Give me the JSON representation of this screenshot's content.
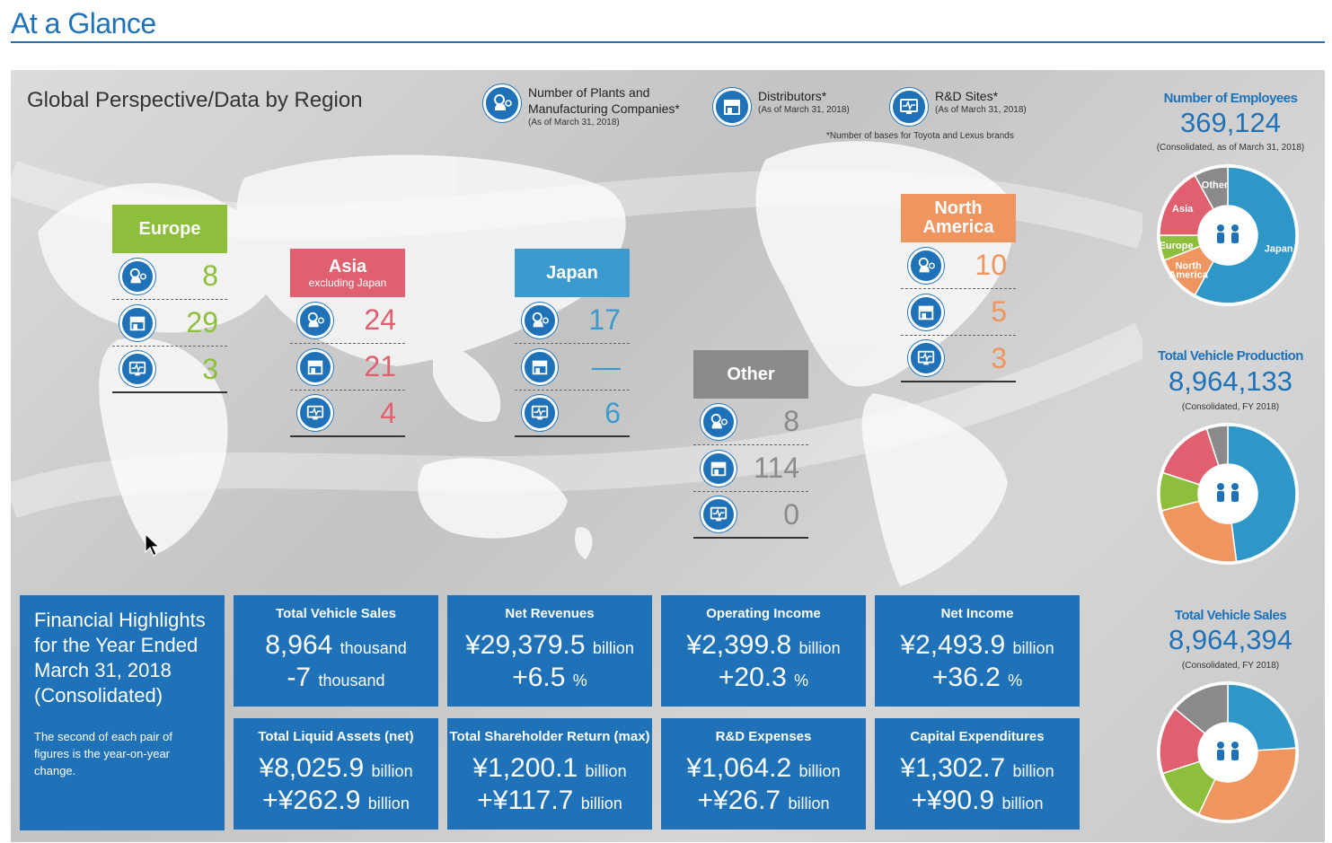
{
  "page_title": "At a Glance",
  "panel_heading": "Global Perspective/Data by Region",
  "legend": {
    "plants": {
      "label_line1": "Number of Plants and",
      "label_line2": "Manufacturing Companies*",
      "sub": "(As of March 31, 2018)",
      "icon": "factory-car-icon"
    },
    "distributors": {
      "label": "Distributors*",
      "sub": "(As of March 31, 2018)",
      "icon": "dealership-icon"
    },
    "rd": {
      "label": "R&D Sites*",
      "sub": "(As of March 31, 2018)",
      "icon": "monitor-pulse-icon"
    },
    "note": "*Number of bases for Toyota and Lexus brands"
  },
  "regions": {
    "europe": {
      "name": "Europe",
      "color": "#8dbf3c",
      "plants": "8",
      "distributors": "29",
      "rd": "3"
    },
    "asia": {
      "name": "Asia",
      "sub": "excluding Japan",
      "color": "#e06070",
      "plants": "24",
      "distributors": "21",
      "rd": "4"
    },
    "japan": {
      "name": "Japan",
      "color": "#3b9bcf",
      "plants": "17",
      "distributors": "—",
      "rd": "6"
    },
    "other": {
      "name": "Other",
      "color": "#8a8a8a",
      "plants": "8",
      "distributors": "114",
      "rd": "0"
    },
    "north_america": {
      "name_line1": "North",
      "name_line2": "America",
      "color": "#ef955f",
      "plants": "10",
      "distributors": "5",
      "rd": "3"
    }
  },
  "employees": {
    "label": "Number of Employees",
    "value": "369,124",
    "note": "(Consolidated, as of March 31, 2018)",
    "segments": [
      {
        "label": "Japan",
        "share": 0.58,
        "color": "#2f96c8"
      },
      {
        "label": "North America",
        "label_line1": "North",
        "label_line2": "America",
        "share": 0.11,
        "color": "#ef955f"
      },
      {
        "label": "Europe",
        "share": 0.06,
        "color": "#8dbf3c"
      },
      {
        "label": "Asia",
        "share": 0.17,
        "color": "#e06070"
      },
      {
        "label": "Other",
        "share": 0.08,
        "color": "#8a8a8a"
      }
    ]
  },
  "production": {
    "label": "Total Vehicle Production",
    "value": "8,964,133",
    "note": "(Consolidated, FY 2018)",
    "segments": [
      {
        "share": 0.48,
        "color": "#2f96c8"
      },
      {
        "share": 0.23,
        "color": "#ef955f"
      },
      {
        "share": 0.09,
        "color": "#8dbf3c"
      },
      {
        "share": 0.15,
        "color": "#e06070"
      },
      {
        "share": 0.05,
        "color": "#8a8a8a"
      }
    ]
  },
  "sales": {
    "label": "Total Vehicle Sales",
    "value": "8,964,394",
    "note": "(Consolidated, FY 2018)",
    "segments": [
      {
        "share": 0.24,
        "color": "#2f96c8"
      },
      {
        "share": 0.33,
        "color": "#ef955f"
      },
      {
        "share": 0.13,
        "color": "#8dbf3c"
      },
      {
        "share": 0.16,
        "color": "#e06070"
      },
      {
        "share": 0.14,
        "color": "#8a8a8a"
      }
    ]
  },
  "financial": {
    "intro_title_1": "Financial Highlights",
    "intro_title_2": "for the Year Ended",
    "intro_title_3": "March 31, 2018",
    "intro_title_4": "(Consolidated)",
    "intro_note": "The second of each pair of figures is the year-on-year change.",
    "boxes": [
      {
        "label": "Total Vehicle Sales",
        "main": "8,964",
        "main_unit": "thousand",
        "change": "-7",
        "change_unit": "thousand"
      },
      {
        "label": "Net Revenues",
        "main": "¥29,379.5",
        "main_unit": "billion",
        "change": "+6.5",
        "change_unit": "%"
      },
      {
        "label": "Operating Income",
        "main": "¥2,399.8",
        "main_unit": "billion",
        "change": "+20.3",
        "change_unit": "%"
      },
      {
        "label": "Net Income",
        "main": "¥2,493.9",
        "main_unit": "billion",
        "change": "+36.2",
        "change_unit": "%"
      },
      {
        "label": "Total Liquid Assets (net)",
        "main": "¥8,025.9",
        "main_unit": "billion",
        "change": "+¥262.9",
        "change_unit": "billion"
      },
      {
        "label": "Total Shareholder Return (max)",
        "main": "¥1,200.1",
        "main_unit": "billion",
        "change": "+¥117.7",
        "change_unit": "billion"
      },
      {
        "label": "R&D Expenses",
        "main": "¥1,064.2",
        "main_unit": "billion",
        "change": "+¥26.7",
        "change_unit": "billion"
      },
      {
        "label": "Capital Expenditures",
        "main": "¥1,302.7",
        "main_unit": "billion",
        "change": "+¥90.9",
        "change_unit": "billion"
      }
    ]
  }
}
